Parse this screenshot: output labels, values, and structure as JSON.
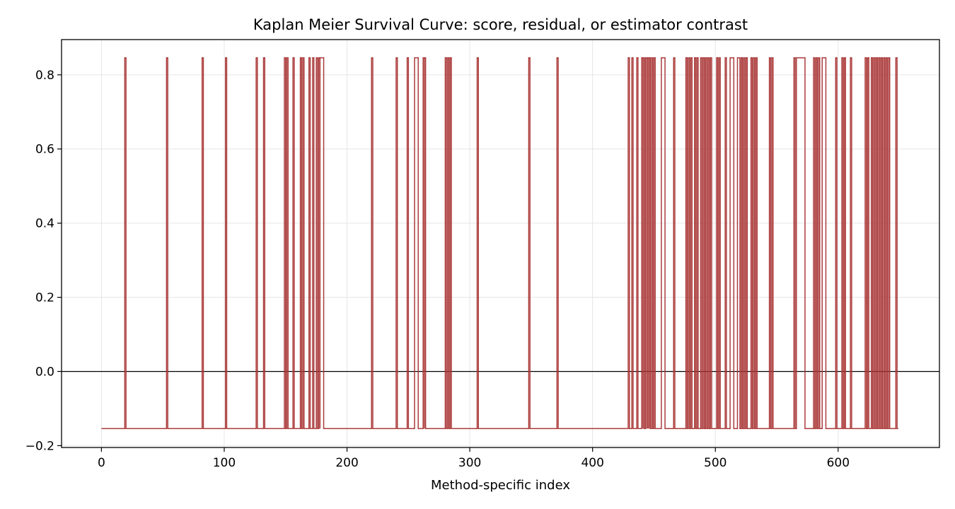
{
  "chart_data": {
    "type": "line",
    "title": "Kaplan Meier Survival Curve: score, residual, or estimator contrast",
    "xlabel": "Method-specific index",
    "ylabel": "",
    "xlim": [
      -32.5,
      682.5
    ],
    "ylim": [
      -0.205,
      0.895
    ],
    "xticks": [
      0,
      100,
      200,
      300,
      400,
      500,
      600
    ],
    "yticks": [
      -0.2,
      0.0,
      0.2,
      0.4,
      0.6,
      0.8
    ],
    "ytick_labels": [
      "−0.2",
      "0.0",
      "0.2",
      "0.4",
      "0.6",
      "0.8"
    ],
    "grid": true,
    "reference_line_y": 0.0,
    "series_color": "#a83232",
    "step": "post",
    "low_value": -0.154,
    "high_value": 0.846,
    "x_start": 0,
    "x_end": 649,
    "high_intervals": [
      [
        19,
        20
      ],
      [
        53,
        54
      ],
      [
        82,
        83
      ],
      [
        101,
        102
      ],
      [
        126,
        127
      ],
      [
        132,
        133
      ],
      [
        149,
        150
      ],
      [
        151,
        152
      ],
      [
        156,
        157
      ],
      [
        162,
        163
      ],
      [
        164,
        165
      ],
      [
        169,
        170
      ],
      [
        172,
        173
      ],
      [
        175,
        176
      ],
      [
        177,
        178
      ],
      [
        178,
        181
      ],
      [
        220,
        221
      ],
      [
        240,
        241
      ],
      [
        249,
        250
      ],
      [
        255,
        258
      ],
      [
        262,
        263
      ],
      [
        263,
        264
      ],
      [
        280,
        281
      ],
      [
        282,
        283
      ],
      [
        284,
        285
      ],
      [
        306,
        307
      ],
      [
        348,
        349
      ],
      [
        371,
        372
      ],
      [
        429,
        430
      ],
      [
        432,
        433
      ],
      [
        436,
        437
      ],
      [
        440,
        441
      ],
      [
        441,
        442
      ],
      [
        443,
        444
      ],
      [
        444,
        445
      ],
      [
        445,
        446
      ],
      [
        446,
        447
      ],
      [
        448,
        449
      ],
      [
        450,
        451
      ],
      [
        456,
        459
      ],
      [
        466,
        467
      ],
      [
        476,
        477
      ],
      [
        478,
        479
      ],
      [
        480,
        481
      ],
      [
        483,
        484
      ],
      [
        485,
        486
      ],
      [
        488,
        489
      ],
      [
        490,
        491
      ],
      [
        492,
        493
      ],
      [
        494,
        495
      ],
      [
        496,
        497
      ],
      [
        501,
        502
      ],
      [
        503,
        504
      ],
      [
        508,
        509
      ],
      [
        512,
        515
      ],
      [
        518,
        520
      ],
      [
        521,
        522
      ],
      [
        523,
        524
      ],
      [
        525,
        526
      ],
      [
        529,
        530
      ],
      [
        531,
        532
      ],
      [
        533,
        534
      ],
      [
        544,
        545
      ],
      [
        546,
        547
      ],
      [
        564,
        565
      ],
      [
        566,
        573
      ],
      [
        580,
        581
      ],
      [
        582,
        583
      ],
      [
        584,
        585
      ],
      [
        587,
        590
      ],
      [
        598,
        599
      ],
      [
        603,
        604
      ],
      [
        605,
        606
      ],
      [
        610,
        611
      ],
      [
        622,
        623
      ],
      [
        624,
        625
      ],
      [
        627,
        628
      ],
      [
        629,
        630
      ],
      [
        631,
        632
      ],
      [
        633,
        634
      ],
      [
        635,
        636
      ],
      [
        637,
        638
      ],
      [
        639,
        640
      ],
      [
        641,
        642
      ],
      [
        647,
        648
      ]
    ]
  }
}
